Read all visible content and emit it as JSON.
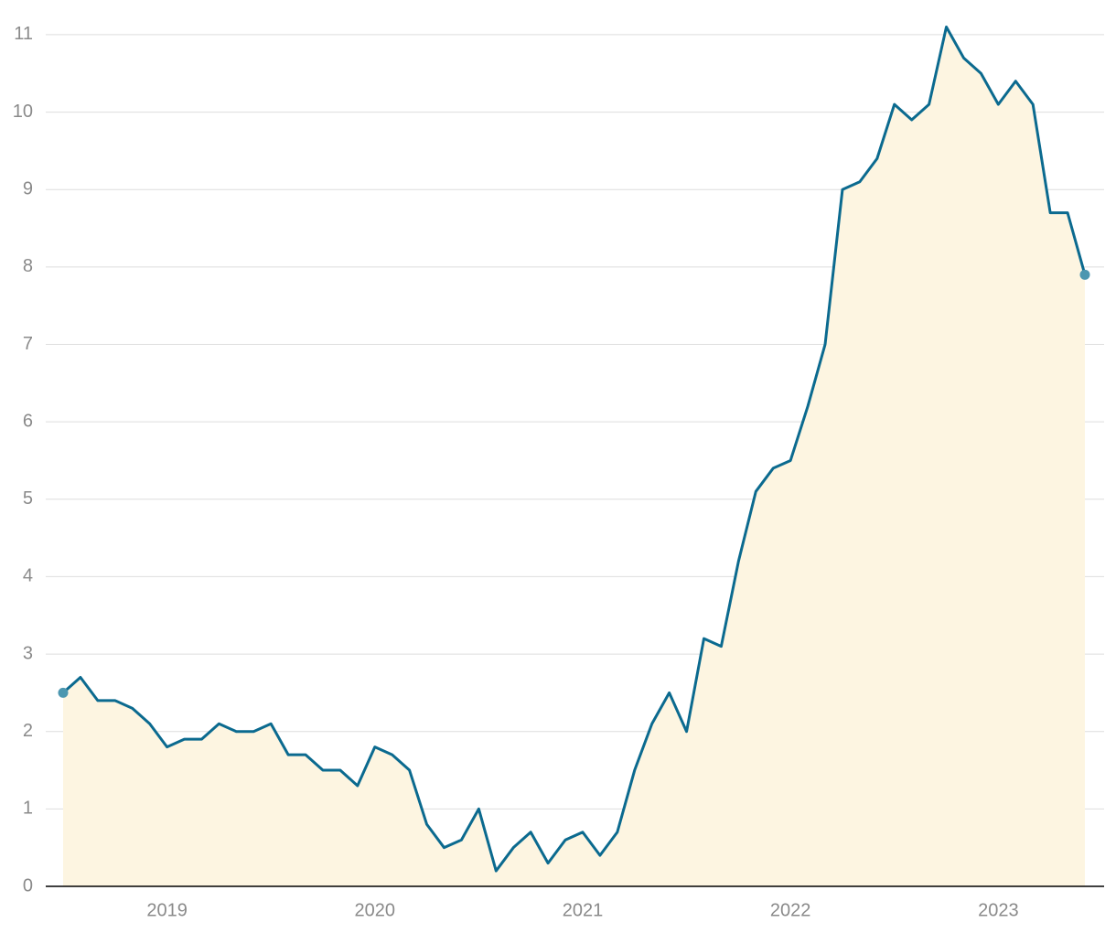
{
  "chart_data": {
    "type": "line",
    "categories": [
      null,
      null,
      null,
      null,
      null,
      null,
      "2019",
      null,
      null,
      null,
      null,
      null,
      null,
      null,
      null,
      null,
      null,
      null,
      "2020",
      null,
      null,
      null,
      null,
      null,
      null,
      null,
      null,
      null,
      null,
      null,
      "2021",
      null,
      null,
      null,
      null,
      null,
      null,
      null,
      null,
      null,
      null,
      null,
      "2022",
      null,
      null,
      null,
      null,
      null,
      null,
      null,
      null,
      null,
      null,
      null,
      "2023",
      null,
      null,
      null,
      null,
      null
    ],
    "series": [
      {
        "color": "#0b6a8f",
        "area_color": "#fdf5e1",
        "marker_color": "#4c97b0",
        "values": [
          2.5,
          2.7,
          2.4,
          2.4,
          2.3,
          2.1,
          1.8,
          1.9,
          1.9,
          2.1,
          2.0,
          2.0,
          2.1,
          1.7,
          1.7,
          1.5,
          1.5,
          1.3,
          1.8,
          1.7,
          1.5,
          0.8,
          0.5,
          0.6,
          1.0,
          0.2,
          0.5,
          0.7,
          0.3,
          0.6,
          0.7,
          0.4,
          0.7,
          1.5,
          2.1,
          2.5,
          2.0,
          3.2,
          3.1,
          4.2,
          5.1,
          5.4,
          5.5,
          6.2,
          7.0,
          9.0,
          9.1,
          9.4,
          10.1,
          9.9,
          10.1,
          11.1,
          10.7,
          10.5,
          10.1,
          10.4,
          10.1,
          8.7,
          8.7,
          7.9
        ]
      }
    ],
    "ylim": [
      0,
      11.2
    ],
    "yticks": [
      0,
      1,
      2,
      3,
      4,
      5,
      6,
      7,
      8,
      9,
      10,
      11
    ],
    "grid": true
  }
}
